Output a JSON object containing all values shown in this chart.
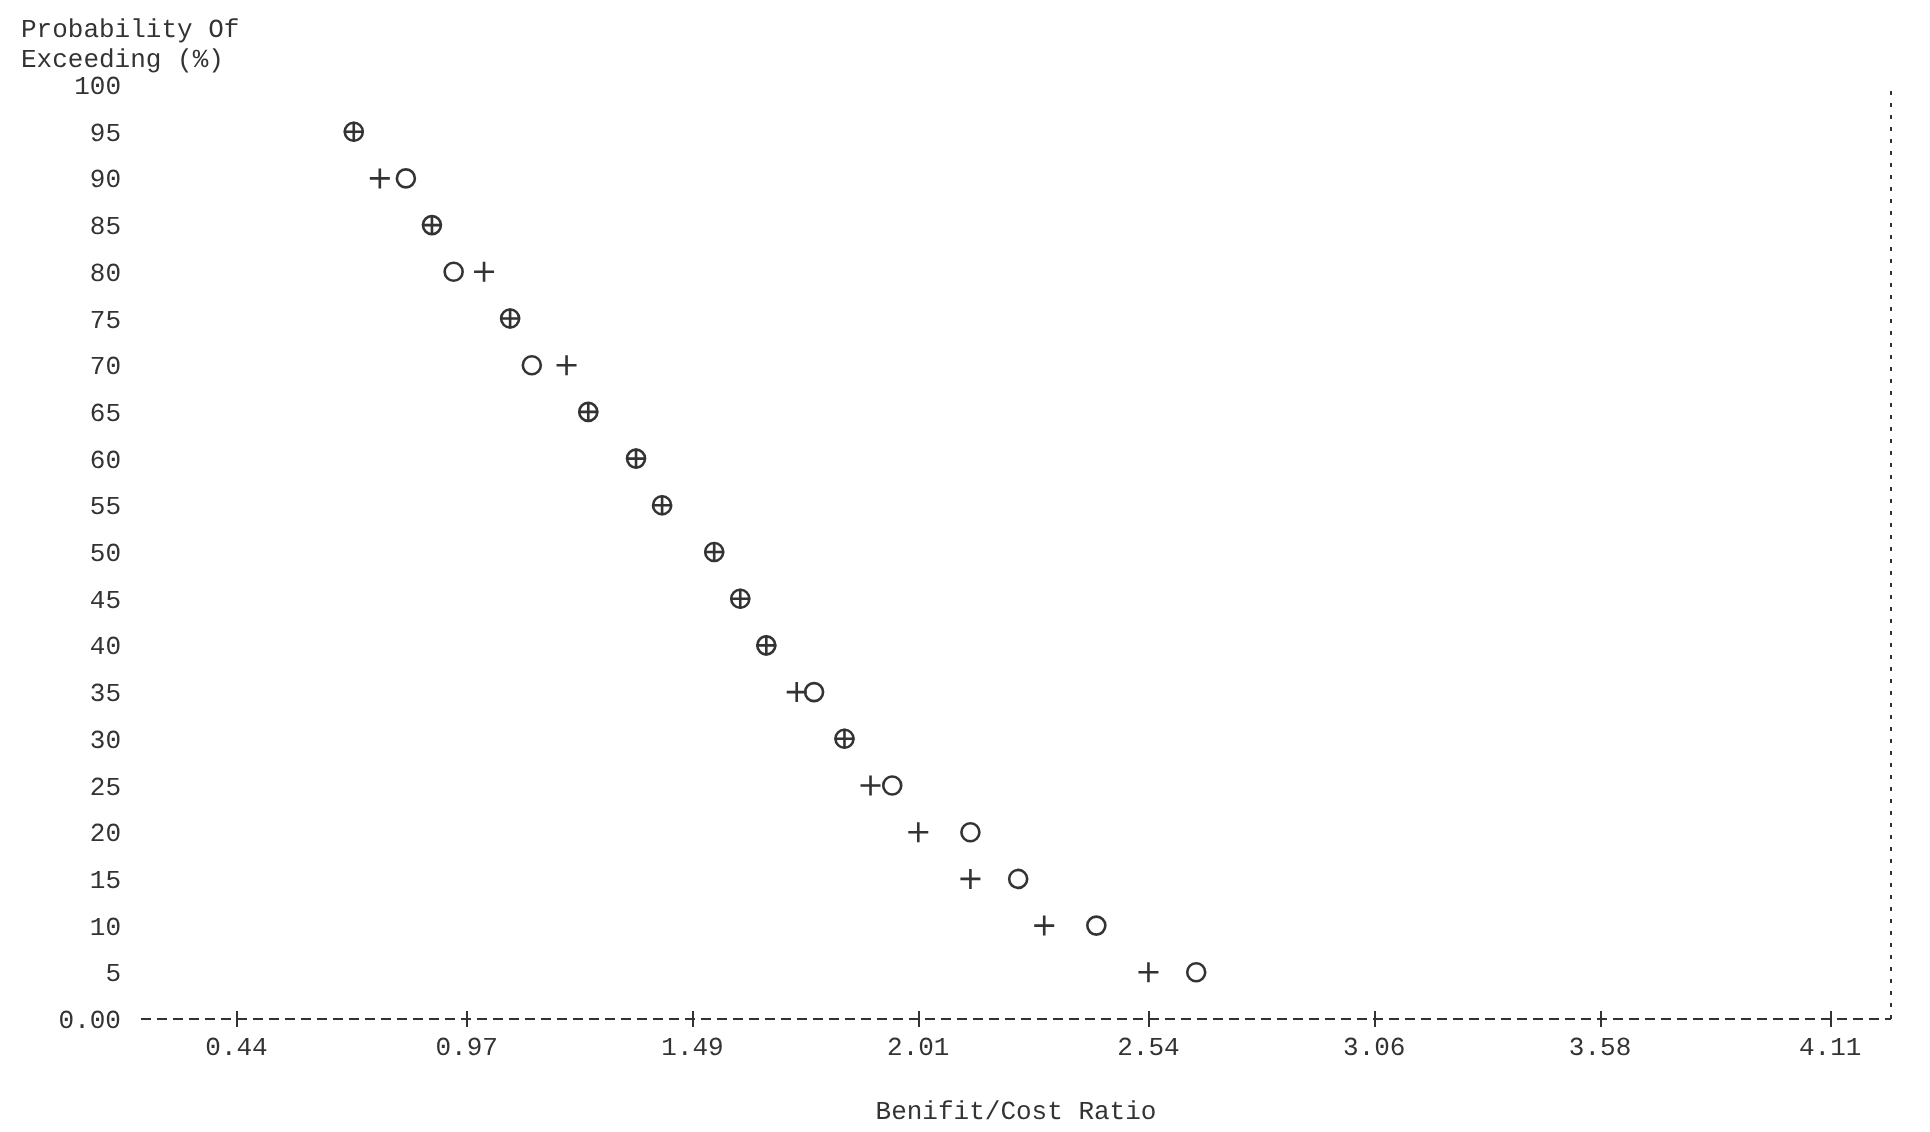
{
  "chart_data": {
    "type": "scatter",
    "ylabel": "Probability Of\nExceeding (%)",
    "xlabel": "Benifit/Cost Ratio",
    "grid": false,
    "xlim": [
      0.22,
      4.25
    ],
    "xticks": [
      0.44,
      0.97,
      1.49,
      2.01,
      2.54,
      3.06,
      3.58,
      4.11
    ],
    "ylim": [
      0,
      100
    ],
    "yticks": [
      {
        "value": 0,
        "label": "0.00"
      },
      5,
      10,
      15,
      20,
      25,
      30,
      35,
      40,
      45,
      50,
      55,
      60,
      65,
      70,
      75,
      80,
      85,
      90,
      95,
      100
    ],
    "series": [
      {
        "marker": "cross",
        "color": "#333333",
        "x": [
          0.71,
          0.77,
          0.89,
          1.01,
          1.07,
          1.2,
          1.25,
          1.36,
          1.42,
          1.54,
          1.6,
          1.66,
          1.73,
          1.84,
          1.9,
          2.01,
          2.13,
          2.3,
          2.54
        ],
        "values": [
          95,
          90,
          85,
          80,
          75,
          70,
          65,
          60,
          55,
          50,
          45,
          40,
          35,
          30,
          25,
          20,
          15,
          10,
          5
        ]
      },
      {
        "marker": "circle",
        "color": "#333333",
        "x": [
          0.71,
          0.83,
          0.89,
          0.94,
          1.07,
          1.12,
          1.25,
          1.36,
          1.42,
          1.54,
          1.6,
          1.66,
          1.77,
          1.84,
          1.95,
          2.13,
          2.24,
          2.42,
          2.65
        ],
        "values": [
          95,
          90,
          85,
          80,
          75,
          70,
          65,
          60,
          55,
          50,
          45,
          40,
          35,
          30,
          25,
          20,
          15,
          10,
          5
        ]
      }
    ]
  }
}
